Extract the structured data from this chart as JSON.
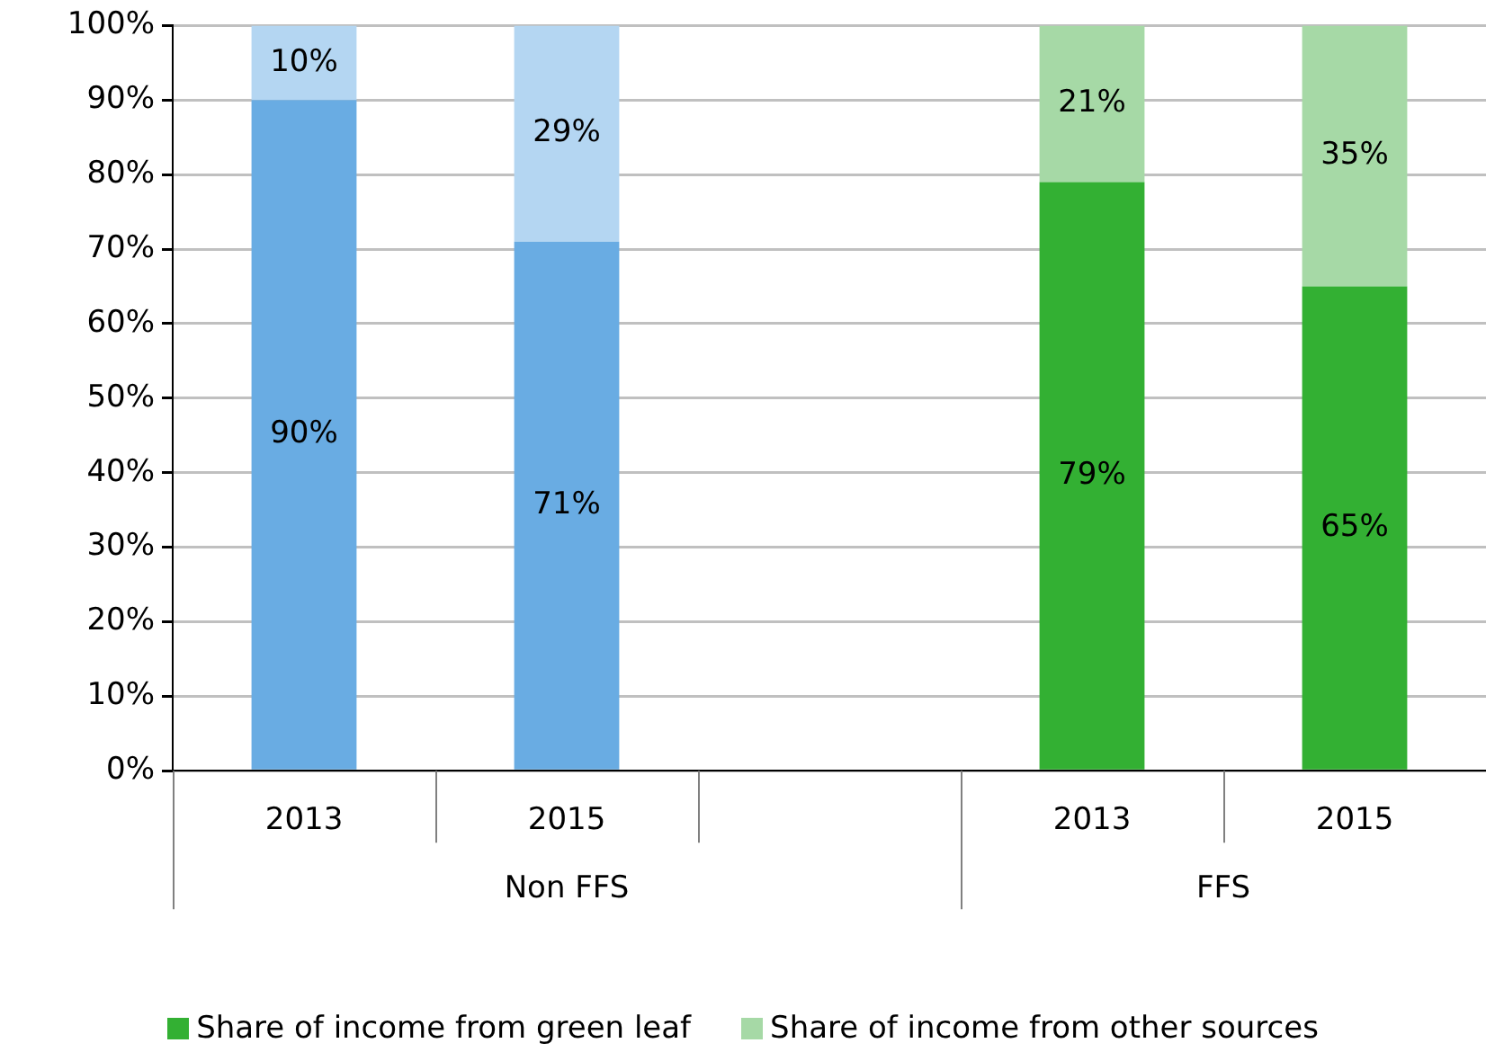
{
  "chart_data": {
    "type": "bar",
    "stacked": true,
    "categories": [
      "2013",
      "2015",
      null,
      "2013",
      "2015"
    ],
    "series": [
      {
        "name": "Share of income from green leaf",
        "color": "#33b033",
        "colors": [
          "#69ace3",
          "#69ace3",
          "#69ace3",
          "#33b033",
          "#33b033"
        ],
        "values": [
          90,
          71,
          null,
          79,
          65
        ],
        "value_labels": [
          "90%",
          "71%",
          null,
          "79%",
          "65%"
        ]
      },
      {
        "name": "Share of income from other sources",
        "color": "#a6d9a6",
        "colors": [
          "#b4d6f2",
          "#b4d6f2",
          "#b4d6f2",
          "#a6d9a6",
          "#a6d9a6"
        ],
        "values": [
          10,
          29,
          null,
          21,
          35
        ],
        "value_labels": [
          "10%",
          "29%",
          null,
          "21%",
          "35%"
        ]
      }
    ],
    "ylim": [
      0,
      100
    ],
    "yticks": [
      {
        "value": 0,
        "label": "0%"
      },
      {
        "value": 10,
        "label": "10%"
      },
      {
        "value": 20,
        "label": "20%"
      },
      {
        "value": 30,
        "label": "30%"
      },
      {
        "value": 40,
        "label": "40%"
      },
      {
        "value": 50,
        "label": "50%"
      },
      {
        "value": 60,
        "label": "60%"
      },
      {
        "value": 70,
        "label": "70%"
      },
      {
        "value": 80,
        "label": "80%"
      },
      {
        "value": 90,
        "label": "90%"
      },
      {
        "value": 100,
        "label": "100%"
      }
    ],
    "grid": "y",
    "legend": "bottom",
    "annotations": [
      "Non FFS",
      "FFS"
    ]
  }
}
